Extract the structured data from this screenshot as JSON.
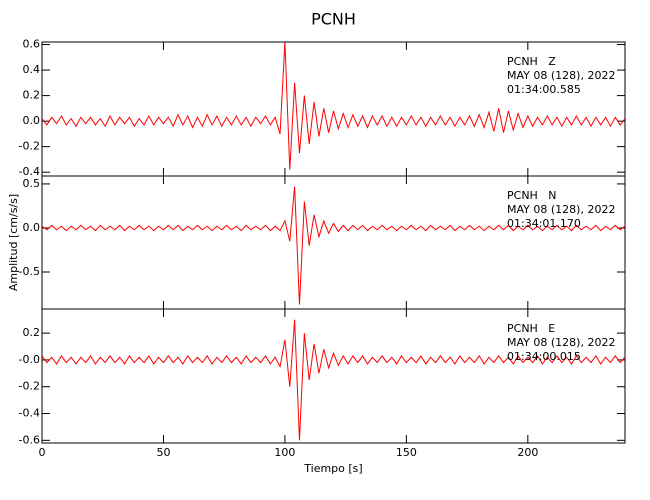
{
  "chart_data": [
    {
      "type": "line",
      "title": "PCNH",
      "color": "#ff0000",
      "annotations": [
        "PCNH   Z",
        "MAY 08 (128), 2022",
        "01:34:00.585"
      ],
      "xlim": [
        0,
        240
      ],
      "xticks": [
        0,
        50,
        100,
        150,
        200
      ],
      "xtick_labels": false,
      "ylim": [
        -0.43,
        0.62
      ],
      "yticks": [
        0.6,
        0.4,
        0.2,
        {
          "value": 0,
          "label": "0.0"
        },
        -0.2,
        -0.4
      ],
      "x": [
        0,
        2,
        4,
        6,
        8,
        10,
        12,
        14,
        16,
        18,
        20,
        22,
        24,
        26,
        28,
        30,
        32,
        34,
        36,
        38,
        40,
        42,
        44,
        46,
        48,
        50,
        52,
        54,
        56,
        58,
        60,
        62,
        64,
        66,
        68,
        70,
        72,
        74,
        76,
        78,
        80,
        82,
        84,
        86,
        88,
        90,
        92,
        94,
        96,
        98,
        100,
        102,
        104,
        106,
        108,
        110,
        112,
        114,
        116,
        118,
        120,
        122,
        124,
        126,
        128,
        130,
        132,
        134,
        136,
        138,
        140,
        142,
        144,
        146,
        148,
        150,
        152,
        154,
        156,
        158,
        160,
        162,
        164,
        166,
        168,
        170,
        172,
        174,
        176,
        178,
        180,
        182,
        184,
        186,
        188,
        190,
        192,
        194,
        196,
        198,
        200,
        202,
        204,
        206,
        208,
        210,
        212,
        214,
        216,
        218,
        220,
        222,
        224,
        226,
        228,
        230,
        232,
        234,
        236,
        238,
        240
      ],
      "values": [
        0.02,
        -0.03,
        0.03,
        -0.02,
        0.04,
        -0.03,
        0.02,
        -0.04,
        0.03,
        -0.02,
        0.03,
        -0.03,
        0.02,
        -0.04,
        0.04,
        -0.03,
        0.03,
        -0.02,
        0.03,
        -0.04,
        0.02,
        -0.03,
        0.04,
        -0.03,
        0.03,
        -0.02,
        0.03,
        -0.04,
        0.05,
        -0.03,
        0.04,
        -0.05,
        0.03,
        -0.04,
        0.05,
        -0.03,
        0.04,
        -0.04,
        0.03,
        -0.03,
        0.04,
        -0.03,
        0.03,
        -0.04,
        0.03,
        -0.02,
        0.04,
        -0.03,
        0.03,
        -0.1,
        0.62,
        -0.38,
        0.3,
        -0.25,
        0.2,
        -0.18,
        0.15,
        -0.12,
        0.1,
        -0.09,
        0.08,
        -0.06,
        0.06,
        -0.05,
        0.05,
        -0.04,
        0.04,
        -0.05,
        0.04,
        -0.03,
        0.04,
        -0.04,
        0.03,
        -0.04,
        0.03,
        -0.03,
        0.04,
        -0.03,
        0.03,
        -0.04,
        0.03,
        -0.03,
        0.04,
        -0.03,
        0.03,
        -0.04,
        0.03,
        -0.03,
        0.04,
        -0.04,
        0.05,
        -0.05,
        0.07,
        -0.08,
        0.1,
        -0.09,
        0.08,
        -0.07,
        0.06,
        -0.05,
        0.04,
        -0.04,
        0.03,
        -0.03,
        0.04,
        -0.03,
        0.03,
        -0.04,
        0.03,
        -0.03,
        0.04,
        -0.03,
        0.03,
        -0.04,
        0.03,
        -0.03,
        0.03,
        -0.04,
        0.03,
        -0.03,
        0.02
      ]
    },
    {
      "type": "line",
      "ylabel": "Amplitud [cm/s/s]",
      "color": "#ff0000",
      "annotations": [
        "PCNH   N",
        "MAY 08 (128), 2022",
        "01:34:01.170"
      ],
      "xlim": [
        0,
        240
      ],
      "xticks": [
        0,
        50,
        100,
        150,
        200
      ],
      "xtick_labels": false,
      "ylim": [
        -0.92,
        0.59
      ],
      "yticks": [
        0.5,
        {
          "value": 0,
          "label": "0.0"
        },
        -0.5
      ],
      "x": [
        0,
        2,
        4,
        6,
        8,
        10,
        12,
        14,
        16,
        18,
        20,
        22,
        24,
        26,
        28,
        30,
        32,
        34,
        36,
        38,
        40,
        42,
        44,
        46,
        48,
        50,
        52,
        54,
        56,
        58,
        60,
        62,
        64,
        66,
        68,
        70,
        72,
        74,
        76,
        78,
        80,
        82,
        84,
        86,
        88,
        90,
        92,
        94,
        96,
        98,
        100,
        102,
        104,
        106,
        108,
        110,
        112,
        114,
        116,
        118,
        120,
        122,
        124,
        126,
        128,
        130,
        132,
        134,
        136,
        138,
        140,
        142,
        144,
        146,
        148,
        150,
        152,
        154,
        156,
        158,
        160,
        162,
        164,
        166,
        168,
        170,
        172,
        174,
        176,
        178,
        180,
        182,
        184,
        186,
        188,
        190,
        192,
        194,
        196,
        198,
        200,
        202,
        204,
        206,
        208,
        210,
        212,
        214,
        216,
        218,
        220,
        222,
        224,
        226,
        228,
        230,
        232,
        234,
        236,
        238,
        240
      ],
      "values": [
        0.02,
        -0.02,
        0.03,
        -0.02,
        0.02,
        -0.03,
        0.02,
        -0.02,
        0.03,
        -0.02,
        0.02,
        -0.03,
        0.03,
        -0.02,
        0.02,
        -0.02,
        0.03,
        -0.03,
        0.02,
        -0.02,
        0.03,
        -0.02,
        0.02,
        -0.03,
        0.02,
        -0.02,
        0.03,
        -0.02,
        0.03,
        -0.03,
        0.02,
        -0.02,
        0.03,
        -0.02,
        0.02,
        -0.03,
        0.02,
        -0.02,
        0.03,
        -0.02,
        0.02,
        -0.03,
        0.03,
        -0.02,
        0.02,
        -0.02,
        0.03,
        -0.03,
        0.02,
        -0.03,
        0.08,
        -0.15,
        0.47,
        -0.87,
        0.3,
        -0.2,
        0.15,
        -0.1,
        0.08,
        -0.06,
        0.05,
        -0.04,
        0.03,
        -0.03,
        0.03,
        -0.02,
        0.03,
        -0.03,
        0.02,
        -0.02,
        0.03,
        -0.02,
        0.02,
        -0.03,
        0.02,
        -0.02,
        0.03,
        -0.02,
        0.02,
        -0.03,
        0.03,
        -0.02,
        0.02,
        -0.02,
        0.03,
        -0.03,
        0.02,
        -0.02,
        0.03,
        -0.02,
        0.02,
        -0.03,
        0.02,
        -0.02,
        0.03,
        -0.02,
        0.03,
        -0.03,
        0.02,
        -0.02,
        0.03,
        -0.02,
        0.02,
        -0.03,
        0.02,
        -0.02,
        0.03,
        -0.02,
        0.02,
        -0.03,
        0.03,
        -0.02,
        0.02,
        -0.02,
        0.03,
        -0.03,
        0.02,
        -0.02,
        0.03,
        -0.02,
        0.02
      ]
    },
    {
      "type": "line",
      "xlabel": "Tiempo [s]",
      "color": "#ff0000",
      "annotations": [
        "PCNH   E",
        "MAY 08 (128), 2022",
        "01:34:00.015"
      ],
      "xlim": [
        0,
        240
      ],
      "xticks": [
        0,
        50,
        100,
        150,
        200
      ],
      "xtick_labels": true,
      "ylim": [
        -0.62,
        0.38
      ],
      "yticks": [
        0.2,
        {
          "value": 0,
          "label": "-0.0"
        },
        -0.2,
        -0.4,
        -0.6
      ],
      "x": [
        0,
        2,
        4,
        6,
        8,
        10,
        12,
        14,
        16,
        18,
        20,
        22,
        24,
        26,
        28,
        30,
        32,
        34,
        36,
        38,
        40,
        42,
        44,
        46,
        48,
        50,
        52,
        54,
        56,
        58,
        60,
        62,
        64,
        66,
        68,
        70,
        72,
        74,
        76,
        78,
        80,
        82,
        84,
        86,
        88,
        90,
        92,
        94,
        96,
        98,
        100,
        102,
        104,
        106,
        108,
        110,
        112,
        114,
        116,
        118,
        120,
        122,
        124,
        126,
        128,
        130,
        132,
        134,
        136,
        138,
        140,
        142,
        144,
        146,
        148,
        150,
        152,
        154,
        156,
        158,
        160,
        162,
        164,
        166,
        168,
        170,
        172,
        174,
        176,
        178,
        180,
        182,
        184,
        186,
        188,
        190,
        192,
        194,
        196,
        198,
        200,
        202,
        204,
        206,
        208,
        210,
        212,
        214,
        216,
        218,
        220,
        222,
        224,
        226,
        228,
        230,
        232,
        234,
        236,
        238,
        240
      ],
      "values": [
        0.03,
        -0.02,
        0.02,
        -0.03,
        0.03,
        -0.02,
        0.02,
        -0.03,
        0.02,
        -0.02,
        0.03,
        -0.03,
        0.02,
        -0.02,
        0.03,
        -0.02,
        0.02,
        -0.03,
        0.03,
        -0.02,
        0.02,
        -0.02,
        0.03,
        -0.03,
        0.02,
        -0.02,
        0.03,
        -0.02,
        0.02,
        -0.03,
        0.03,
        -0.02,
        0.02,
        -0.02,
        0.03,
        -0.03,
        0.02,
        -0.02,
        0.03,
        -0.02,
        0.02,
        -0.03,
        0.03,
        -0.02,
        0.02,
        -0.02,
        0.03,
        -0.03,
        0.02,
        -0.05,
        0.15,
        -0.2,
        0.3,
        -0.6,
        0.2,
        -0.15,
        0.12,
        -0.1,
        0.08,
        -0.06,
        0.05,
        -0.04,
        0.03,
        -0.03,
        0.03,
        -0.02,
        0.03,
        -0.03,
        0.02,
        -0.02,
        0.03,
        -0.02,
        0.02,
        -0.03,
        0.03,
        -0.02,
        0.02,
        -0.02,
        0.03,
        -0.03,
        0.02,
        -0.02,
        0.03,
        -0.02,
        0.02,
        -0.03,
        0.03,
        -0.02,
        0.02,
        -0.02,
        0.03,
        -0.03,
        0.02,
        -0.02,
        0.03,
        -0.02,
        0.02,
        -0.03,
        0.03,
        -0.02,
        0.02,
        -0.02,
        0.03,
        -0.03,
        0.02,
        -0.02,
        0.03,
        -0.02,
        0.02,
        -0.03,
        0.03,
        -0.02,
        0.02,
        -0.02,
        0.03,
        -0.03,
        0.02,
        -0.02,
        0.03,
        -0.02,
        0.02
      ]
    }
  ]
}
